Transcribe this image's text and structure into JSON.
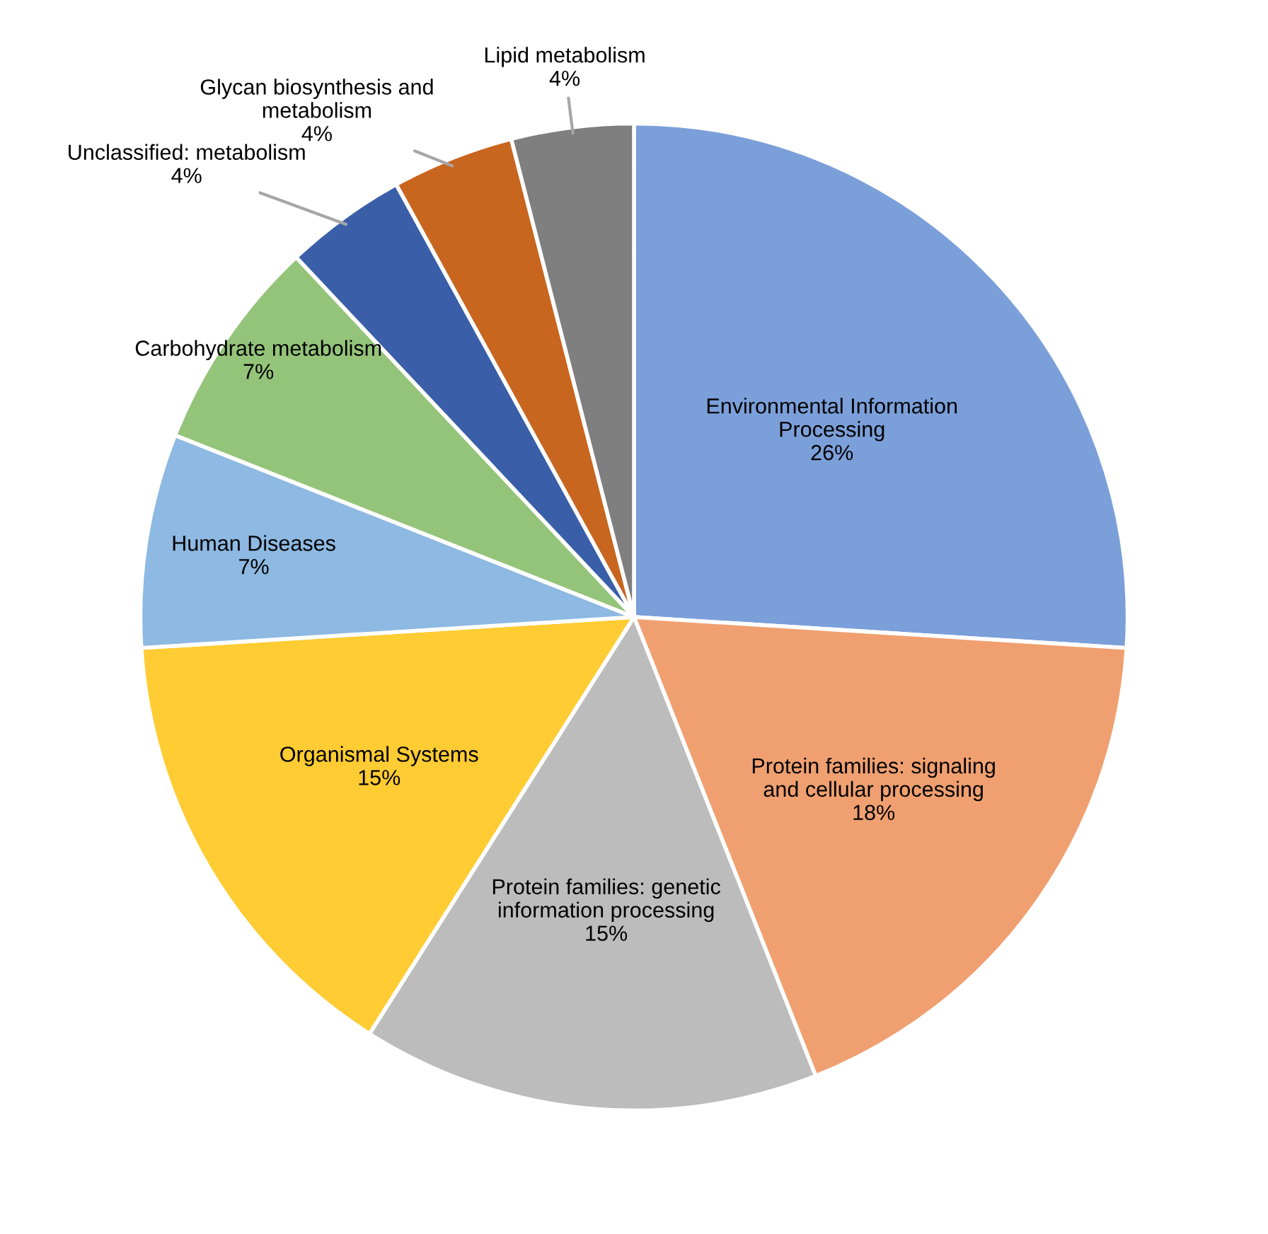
{
  "chart_data": {
    "type": "pie",
    "categories": [
      "Environmental Information\nProcessing",
      "Protein families: signaling\nand cellular processing",
      "Protein families: genetic\ninformation processing",
      "Organismal Systems",
      "Human Diseases",
      "Carbohydrate metabolism",
      "Unclassified: metabolism",
      "Glycan biosynthesis and\nmetabolism",
      "Lipid metabolism"
    ],
    "values": [
      26,
      18,
      15,
      15,
      7,
      7,
      4,
      4,
      4
    ],
    "value_labels": [
      "26%",
      "18%",
      "15%",
      "15%",
      "7%",
      "7%",
      "4%",
      "4%",
      "4%"
    ],
    "colors": [
      "#7b9fd9",
      "#f0a070",
      "#bcbcbc",
      "#ffcc33",
      "#8db9e2",
      "#94c47a",
      "#3a5fa8",
      "#c8651f",
      "#7f7f7f"
    ]
  }
}
